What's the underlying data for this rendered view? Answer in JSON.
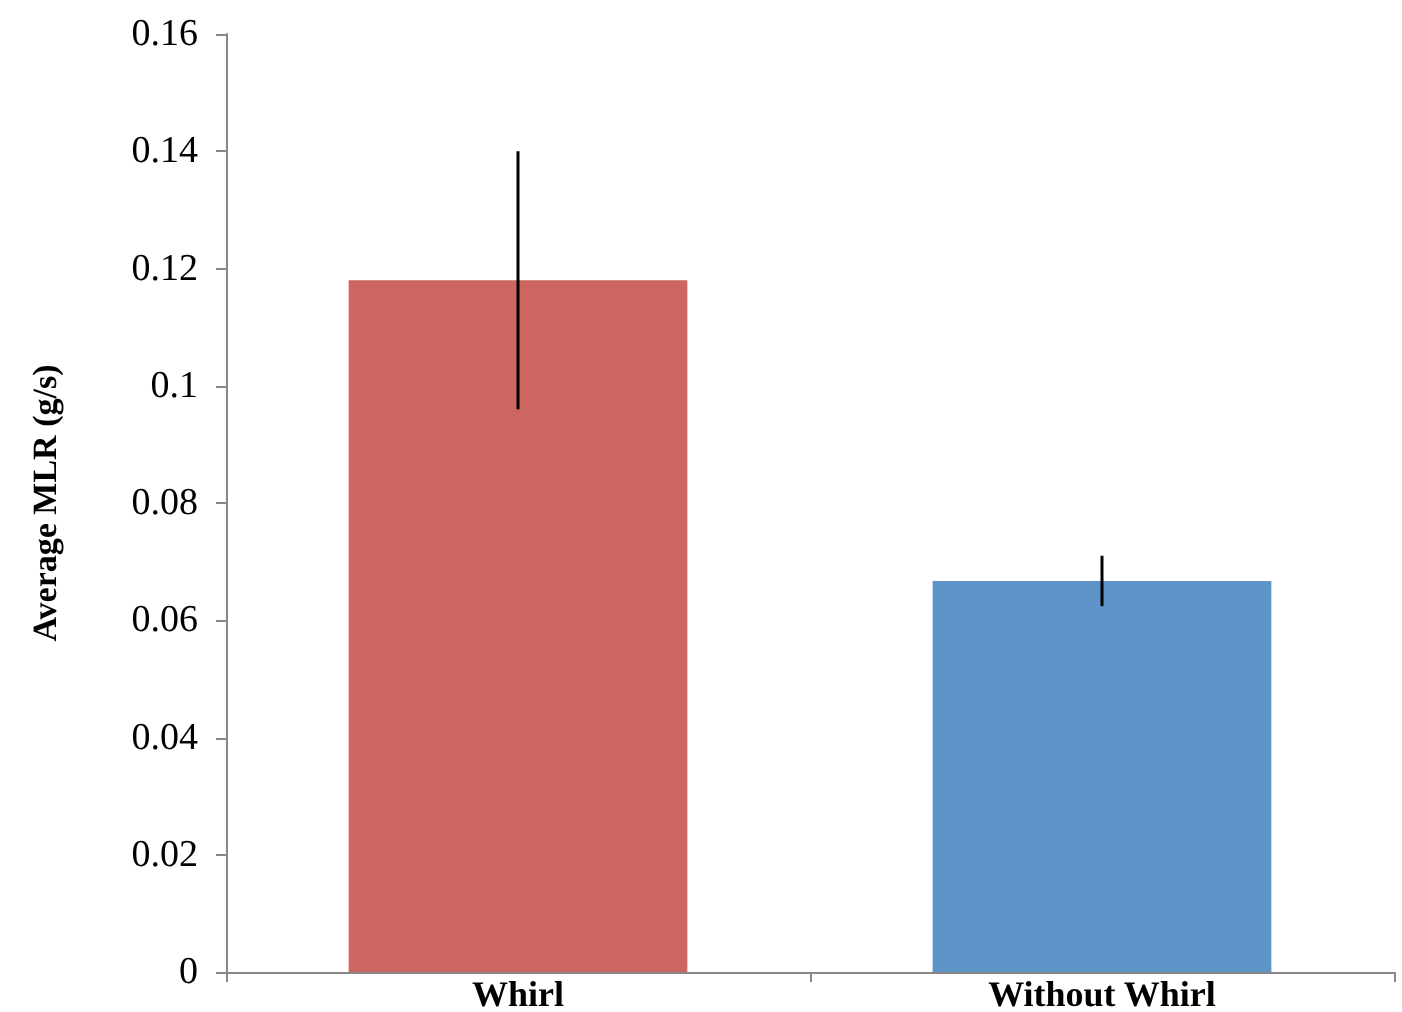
{
  "chart_data": {
    "type": "bar",
    "ylabel": "Average MLR (g/s)",
    "categories": [
      "Whirl",
      "Without Whirl"
    ],
    "values": [
      0.118,
      0.0667
    ],
    "colors": [
      "#cd6560",
      "#5f94c8"
    ],
    "errors": [
      0.022,
      0.0043
    ],
    "ylim": [
      0,
      0.16
    ],
    "yticks": [
      0,
      0.02,
      0.04,
      0.06,
      0.08,
      0.1,
      0.12,
      0.14,
      0.16
    ],
    "grid": false
  }
}
